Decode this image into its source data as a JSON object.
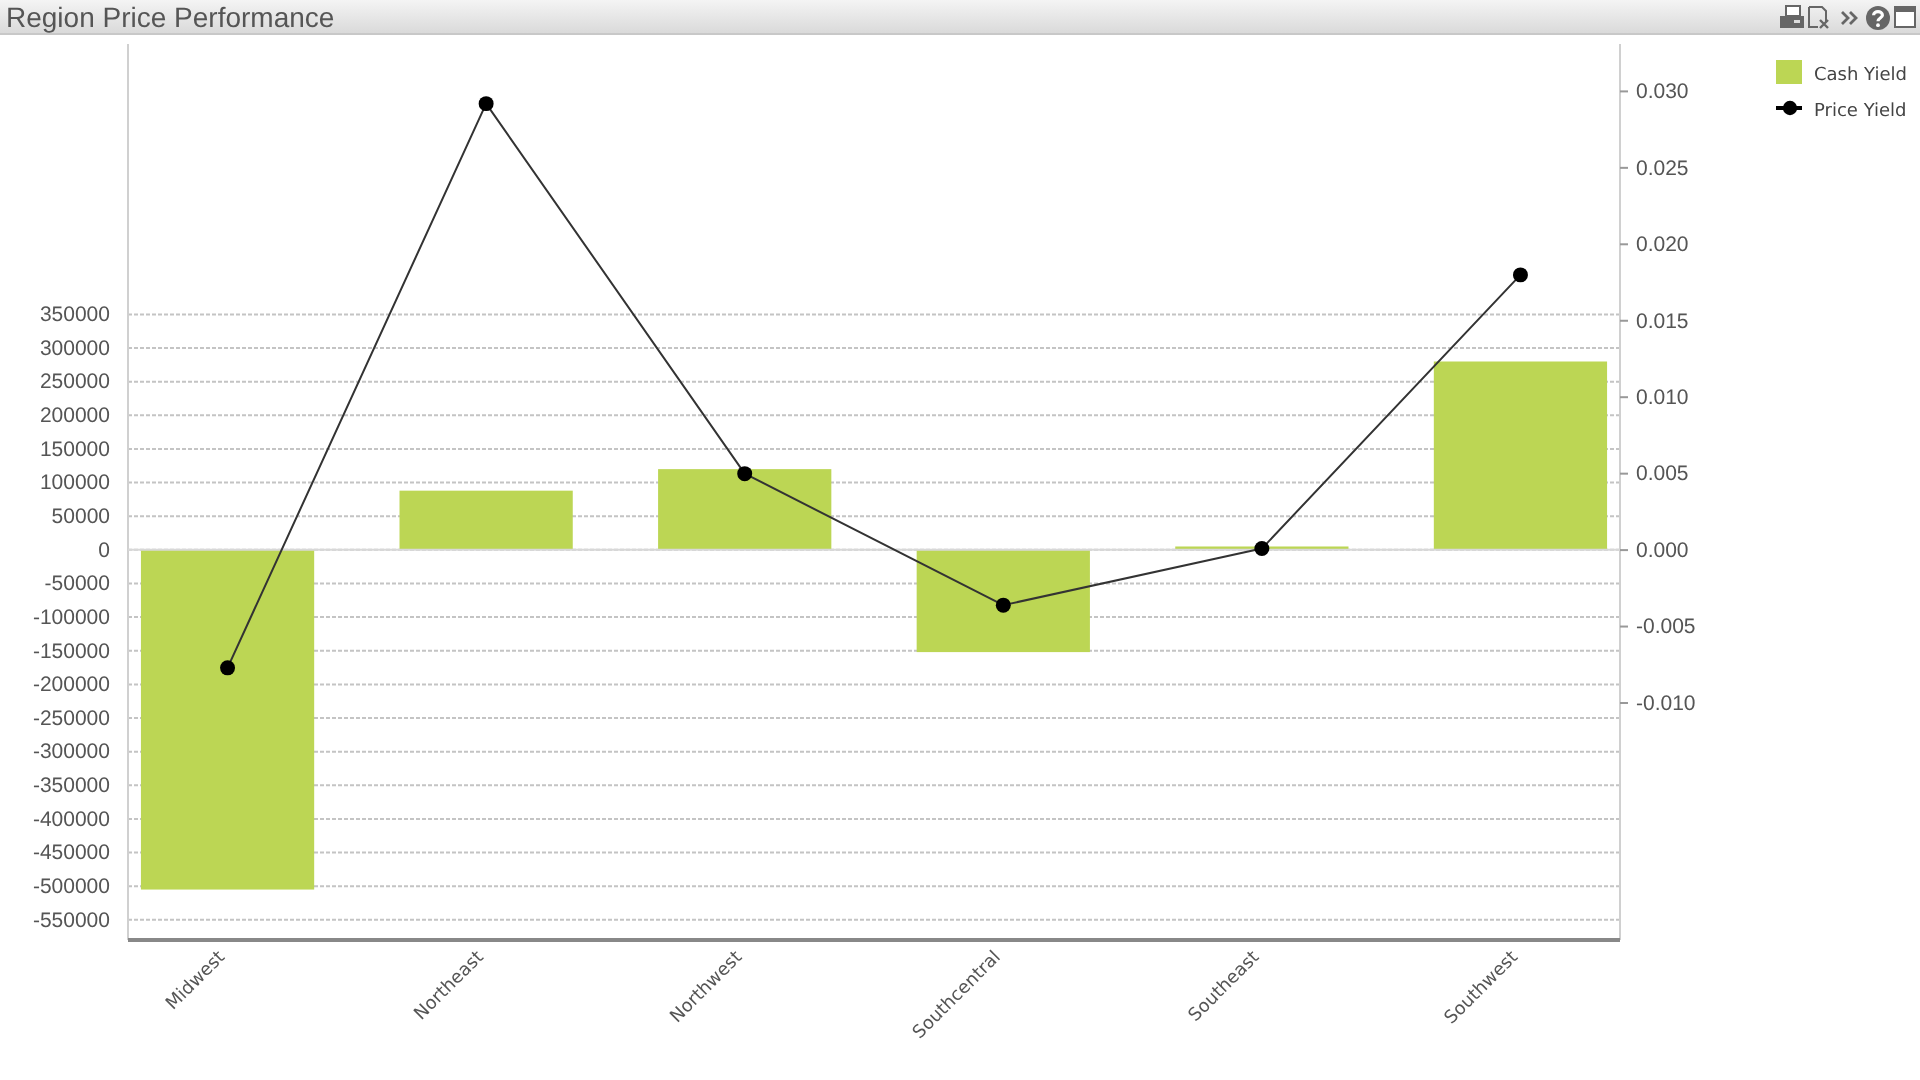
{
  "chart_data": {
    "type": "bar",
    "title": "Region Price Performance",
    "categories": [
      "Midwest",
      "Northeast",
      "Northwest",
      "Southcentral",
      "Southeast",
      "Southwest"
    ],
    "series": [
      {
        "name": "Cash Yield",
        "color": "#bcd654",
        "values": [
          -505000,
          88000,
          120000,
          -152000,
          5000,
          280000
        ]
      },
      {
        "name": "Price Yield",
        "type": "line",
        "axis": "y2",
        "color": "#333333",
        "values": [
          -0.0077,
          0.0292,
          0.005,
          -0.0036,
          0.0001,
          0.018
        ]
      }
    ],
    "ylim": [
      -580000,
      752000
    ],
    "yticks": [
      -550000,
      -500000,
      -450000,
      -400000,
      -350000,
      -300000,
      -250000,
      -200000,
      -150000,
      -100000,
      -50000,
      0,
      50000,
      100000,
      150000,
      200000,
      250000,
      300000,
      350000
    ],
    "y2lim": [
      -0.0255,
      0.0331
    ],
    "y2ticks": [
      {
        "value": -0.01,
        "label": "-0.010"
      },
      {
        "value": -0.005,
        "label": "-0.005"
      },
      {
        "value": 0,
        "label": "0.000"
      },
      {
        "value": 0.005,
        "label": "0.005"
      },
      {
        "value": 0.01,
        "label": "0.010"
      },
      {
        "value": 0.015,
        "label": "0.015"
      },
      {
        "value": 0.02,
        "label": "0.020"
      },
      {
        "value": 0.025,
        "label": "0.025"
      },
      {
        "value": 0.03,
        "label": "0.030"
      }
    ],
    "grid": "y",
    "legend": "top right",
    "marker": "circle"
  }
}
